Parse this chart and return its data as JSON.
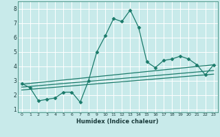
{
  "xlabel": "Humidex (Indice chaleur)",
  "bg_color": "#c8eaea",
  "grid_color": "#ffffff",
  "line_color": "#1a7a6a",
  "xlim": [
    -0.5,
    23.5
  ],
  "ylim": [
    0.8,
    8.5
  ],
  "yticks": [
    1,
    2,
    3,
    4,
    5,
    6,
    7,
    8
  ],
  "xticks": [
    0,
    1,
    2,
    3,
    4,
    5,
    6,
    7,
    8,
    9,
    10,
    11,
    12,
    13,
    14,
    15,
    16,
    17,
    18,
    19,
    20,
    21,
    22,
    23
  ],
  "main_series": {
    "x": [
      0,
      1,
      2,
      3,
      4,
      5,
      6,
      7,
      8,
      9,
      10,
      11,
      12,
      13,
      14,
      15,
      16,
      17,
      18,
      19,
      20,
      21,
      22,
      23
    ],
    "y": [
      2.8,
      2.5,
      1.6,
      1.7,
      1.8,
      2.2,
      2.2,
      1.5,
      3.0,
      5.0,
      6.1,
      7.3,
      7.1,
      7.9,
      6.7,
      4.3,
      3.9,
      4.4,
      4.5,
      4.7,
      4.5,
      4.1,
      3.4,
      4.1
    ]
  },
  "reg_lines": [
    {
      "x0": 0,
      "y0": 2.75,
      "x1": 23,
      "y1": 4.1
    },
    {
      "x0": 0,
      "y0": 2.55,
      "x1": 23,
      "y1": 3.7
    },
    {
      "x0": 0,
      "y0": 2.35,
      "x1": 23,
      "y1": 3.45
    }
  ]
}
